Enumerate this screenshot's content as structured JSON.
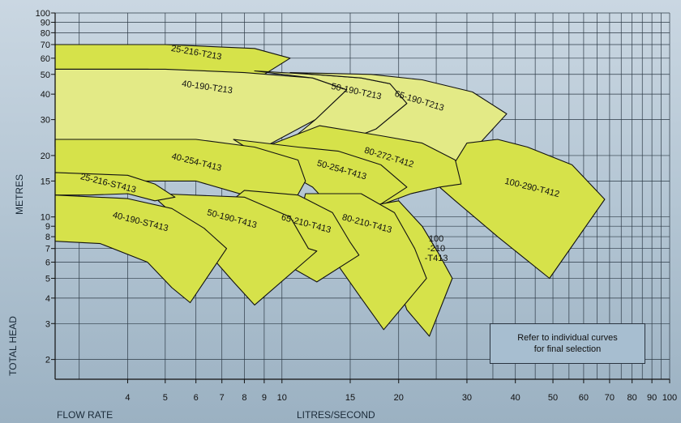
{
  "chart_data": {
    "type": "area",
    "title": "",
    "xlabel_left": "FLOW RATE",
    "xlabel_center": "LITRES/SECOND",
    "ylabel_bottom": "TOTAL HEAD",
    "ylabel_top": "METRES",
    "x_scale": "log",
    "y_scale": "log",
    "xlim": [
      2.6,
      100
    ],
    "ylim": [
      1.6,
      100
    ],
    "x_ticks": [
      4,
      5,
      6,
      7,
      8,
      9,
      10,
      15,
      20,
      30,
      40,
      50,
      60,
      70,
      80,
      90,
      100
    ],
    "y_ticks": [
      2,
      3,
      4,
      5,
      6,
      7,
      8,
      9,
      10,
      15,
      20,
      30,
      40,
      50,
      60,
      70,
      80,
      90,
      100
    ],
    "grid": true,
    "fill_color": "#d6e24a",
    "fill_color_light": "#e3ea86",
    "series": [
      {
        "name": "25-216-T213",
        "region": [
          [
            2.6,
            70
          ],
          [
            5,
            70
          ],
          [
            8.5,
            67
          ],
          [
            10.5,
            60
          ],
          [
            9,
            50
          ],
          [
            7,
            51
          ],
          [
            4.5,
            53
          ],
          [
            2.6,
            53
          ]
        ],
        "label_at": [
          6.0,
          62
        ],
        "angle": 10
      },
      {
        "name": "40-190-T213",
        "region": [
          [
            2.6,
            53
          ],
          [
            5,
            53
          ],
          [
            8,
            51
          ],
          [
            12,
            48
          ],
          [
            14.7,
            42
          ],
          [
            12.2,
            30
          ],
          [
            9,
            22
          ],
          [
            2.6,
            22
          ]
        ],
        "label_at": [
          6.4,
          42
        ],
        "angle": 8
      },
      {
        "name": "50-190-T213",
        "region": [
          [
            8.5,
            52
          ],
          [
            12,
            50
          ],
          [
            16,
            48
          ],
          [
            19,
            45
          ],
          [
            21,
            36
          ],
          [
            17.5,
            27
          ],
          [
            12.5,
            21
          ],
          [
            10,
            22
          ],
          [
            12.2,
            30
          ],
          [
            14.7,
            42
          ],
          [
            12,
            48
          ]
        ],
        "label_at": [
          15.5,
          40
        ],
        "angle": 12
      },
      {
        "name": "65-190-T213",
        "region": [
          [
            10.5,
            51
          ],
          [
            17,
            50
          ],
          [
            23,
            47
          ],
          [
            31,
            41
          ],
          [
            38,
            32
          ],
          [
            25.5,
            14
          ],
          [
            21.5,
            13
          ],
          [
            14,
            18
          ],
          [
            12.5,
            21
          ],
          [
            17.5,
            27
          ],
          [
            21,
            36
          ],
          [
            19,
            45
          ],
          [
            16,
            48
          ]
        ],
        "label_at": [
          22.5,
          36
        ],
        "angle": 17
      },
      {
        "name": "100-290-T412",
        "region": [
          [
            25.5,
            14
          ],
          [
            30,
            23
          ],
          [
            36,
            24
          ],
          [
            43,
            22
          ],
          [
            56,
            18
          ],
          [
            68,
            12.2
          ],
          [
            49,
            5
          ],
          [
            36,
            8
          ],
          [
            28,
            12
          ]
        ],
        "label_at": [
          44,
          13.5
        ],
        "angle": 14
      },
      {
        "name": "80-272-T412",
        "region": [
          [
            9,
            22
          ],
          [
            12.5,
            28
          ],
          [
            18,
            25
          ],
          [
            23,
            23
          ],
          [
            28,
            19
          ],
          [
            29,
            14.5
          ],
          [
            25.5,
            14
          ],
          [
            21.5,
            13
          ],
          [
            17,
            11
          ],
          [
            13,
            14
          ],
          [
            11,
            16
          ]
        ],
        "label_at": [
          18.8,
          19
        ],
        "angle": 17
      },
      {
        "name": "50-254-T413",
        "region": [
          [
            7.5,
            24
          ],
          [
            11,
            22
          ],
          [
            14,
            21
          ],
          [
            18,
            18
          ],
          [
            21,
            14
          ],
          [
            16,
            10
          ],
          [
            13.5,
            11
          ],
          [
            12,
            14
          ],
          [
            10,
            17
          ]
        ],
        "label_at": [
          14.2,
          16.5
        ],
        "angle": 16
      },
      {
        "name": "40-254-T413",
        "region": [
          [
            2.6,
            24
          ],
          [
            6,
            24
          ],
          [
            8.5,
            22
          ],
          [
            11,
            19
          ],
          [
            11.5,
            15
          ],
          [
            10.5,
            11
          ],
          [
            9,
            12
          ],
          [
            6,
            15
          ],
          [
            2.6,
            15
          ]
        ],
        "label_at": [
          6.0,
          18
        ],
        "angle": 14
      },
      {
        "name": "100 -210 -T413",
        "region": [
          [
            15.5,
            11
          ],
          [
            20,
            12
          ],
          [
            23,
            9
          ],
          [
            25.5,
            6.5
          ],
          [
            27.5,
            5
          ],
          [
            24,
            2.6
          ],
          [
            21,
            3.5
          ],
          [
            19,
            6
          ]
        ],
        "label_at": [
          25,
          6.8
        ],
        "angle": 0
      },
      {
        "name": "80-210-T413",
        "region": [
          [
            11.5,
            13
          ],
          [
            16,
            13
          ],
          [
            19.5,
            10.5
          ],
          [
            22,
            7
          ],
          [
            23.6,
            5
          ],
          [
            18.3,
            2.8
          ],
          [
            16,
            4
          ],
          [
            13,
            7
          ],
          [
            11,
            9
          ]
        ],
        "label_at": [
          16.5,
          9
        ],
        "angle": 15
      },
      {
        "name": "65-210-T413",
        "region": [
          [
            8,
            13.5
          ],
          [
            11,
            12.8
          ],
          [
            13.5,
            10.5
          ],
          [
            15,
            7.5
          ],
          [
            15.8,
            6.5
          ],
          [
            12.3,
            4.8
          ],
          [
            10,
            6
          ],
          [
            8.5,
            8
          ],
          [
            7,
            11
          ]
        ],
        "label_at": [
          11.5,
          9
        ],
        "angle": 15
      },
      {
        "name": "50-190-T413",
        "region": [
          [
            4.8,
            13
          ],
          [
            8,
            12.5
          ],
          [
            10.5,
            10
          ],
          [
            11.7,
            7
          ],
          [
            12.3,
            6.8
          ],
          [
            8.5,
            3.7
          ],
          [
            7.5,
            4.8
          ],
          [
            6.3,
            7
          ],
          [
            5.5,
            9.5
          ],
          [
            4.8,
            12
          ]
        ],
        "label_at": [
          7.4,
          9.5
        ],
        "angle": 15
      },
      {
        "name": "25-216-ST413",
        "region": [
          [
            2.6,
            16.5
          ],
          [
            4,
            16
          ],
          [
            4.7,
            14.5
          ],
          [
            5.3,
            12.5
          ],
          [
            4.7,
            12
          ],
          [
            4,
            13
          ],
          [
            3.2,
            12.8
          ],
          [
            2.6,
            12.8
          ]
        ],
        "label_at": [
          3.55,
          14.2
        ],
        "angle": 14
      },
      {
        "name": "40-190-ST413",
        "region": [
          [
            2.6,
            12.8
          ],
          [
            4,
            12.3
          ],
          [
            5.2,
            11
          ],
          [
            6.3,
            8.8
          ],
          [
            7.2,
            7
          ],
          [
            5.8,
            3.8
          ],
          [
            5.2,
            4.5
          ],
          [
            4.5,
            6
          ],
          [
            3.4,
            7.4
          ],
          [
            2.6,
            7.6
          ]
        ],
        "label_at": [
          4.3,
          9.2
        ],
        "angle": 14
      }
    ]
  },
  "axis_titles": {
    "flow_rate": "FLOW RATE",
    "litres_second": "LITRES/SECOND",
    "total_head": "TOTAL HEAD",
    "metres": "METRES"
  },
  "note": "Refer to individual curves\nfor final selection"
}
